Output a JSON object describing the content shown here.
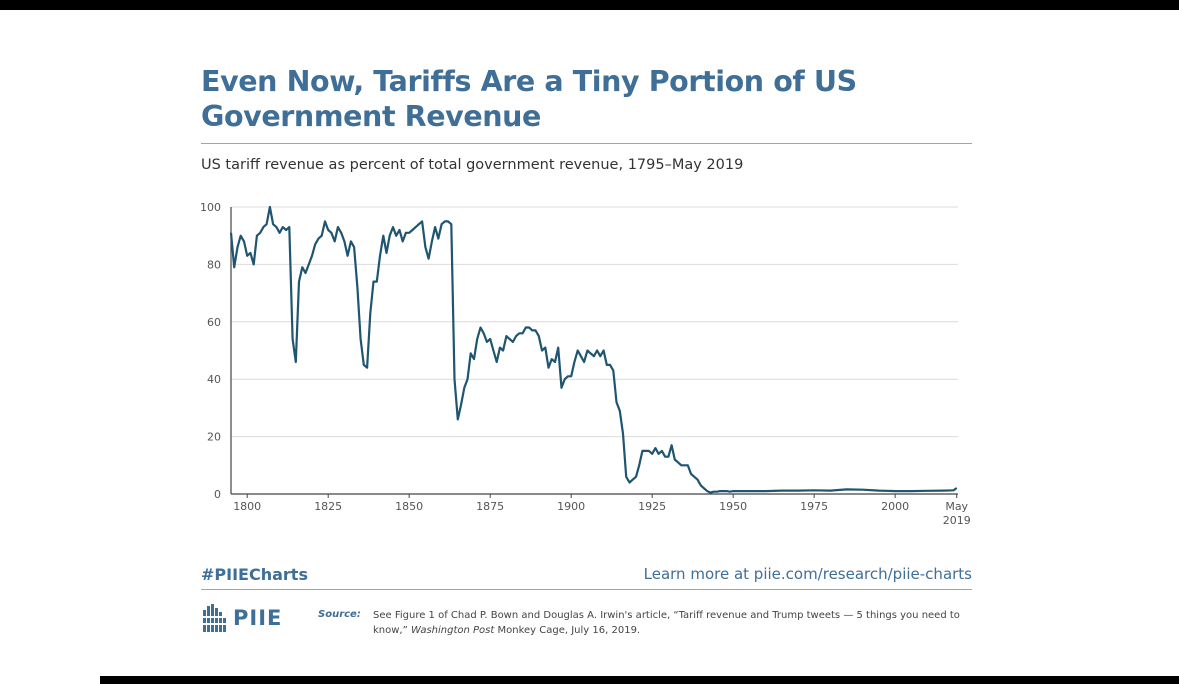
{
  "header": {
    "title": "Even Now, Tariffs Are a Tiny Portion of US Government Revenue",
    "subtitle": "US tariff revenue as percent of total government revenue, 1795–May 2019"
  },
  "footer": {
    "hashtag": "#PIIECharts",
    "learn_more": "Learn more at piie.com/research/piie-charts",
    "logo_text": "PIIE",
    "source_label": "Source:",
    "source_text_1": "See Figure 1 of Chad P. Bown and Douglas A. Irwin's article, “Tariff revenue and Trump tweets — 5 things you need to know,”",
    "source_italic": "Washington Post",
    "source_text_2": "Monkey Cage, July 16, 2019."
  },
  "colors": {
    "line": "#1f5570",
    "title": "#3f6e97",
    "grid": "#dcdcdc"
  },
  "chart_data": {
    "type": "line",
    "title": "Even Now, Tariffs Are a Tiny Portion of US Government Revenue",
    "subtitle": "US tariff revenue as percent of total government revenue, 1795–May 2019",
    "xlabel": "",
    "ylabel": "",
    "xlim": [
      1795,
      2019.4
    ],
    "ylim": [
      0,
      100
    ],
    "grid": true,
    "y_ticks": [
      0,
      20,
      40,
      60,
      80,
      100
    ],
    "x_ticks": [
      {
        "value": 1800,
        "label": "1800"
      },
      {
        "value": 1825,
        "label": "1825"
      },
      {
        "value": 1850,
        "label": "1850"
      },
      {
        "value": 1875,
        "label": "1875"
      },
      {
        "value": 1900,
        "label": "1900"
      },
      {
        "value": 1925,
        "label": "1925"
      },
      {
        "value": 1950,
        "label": "1950"
      },
      {
        "value": 1975,
        "label": "1975"
      },
      {
        "value": 2000,
        "label": "2000"
      },
      {
        "value": 2019,
        "label": "May",
        "label2": "2019"
      }
    ],
    "series": [
      {
        "values": [
          [
            1795,
            91
          ],
          [
            1796,
            79
          ],
          [
            1797,
            86
          ],
          [
            1798,
            90
          ],
          [
            1799,
            88
          ],
          [
            1800,
            83
          ],
          [
            1801,
            84
          ],
          [
            1802,
            80
          ],
          [
            1803,
            90
          ],
          [
            1804,
            91
          ],
          [
            1805,
            93
          ],
          [
            1806,
            94
          ],
          [
            1807,
            100
          ],
          [
            1808,
            94
          ],
          [
            1809,
            93
          ],
          [
            1810,
            91
          ],
          [
            1811,
            93
          ],
          [
            1812,
            92
          ],
          [
            1813,
            93
          ],
          [
            1814,
            54
          ],
          [
            1815,
            46
          ],
          [
            1816,
            74
          ],
          [
            1817,
            79
          ],
          [
            1818,
            77
          ],
          [
            1819,
            80
          ],
          [
            1820,
            83
          ],
          [
            1821,
            87
          ],
          [
            1822,
            89
          ],
          [
            1823,
            90
          ],
          [
            1824,
            95
          ],
          [
            1825,
            92
          ],
          [
            1826,
            91
          ],
          [
            1827,
            88
          ],
          [
            1828,
            93
          ],
          [
            1829,
            91
          ],
          [
            1830,
            88
          ],
          [
            1831,
            83
          ],
          [
            1832,
            88
          ],
          [
            1833,
            86
          ],
          [
            1834,
            72
          ],
          [
            1835,
            54
          ],
          [
            1836,
            45
          ],
          [
            1837,
            44
          ],
          [
            1838,
            63
          ],
          [
            1839,
            74
          ],
          [
            1840,
            74
          ],
          [
            1841,
            83
          ],
          [
            1842,
            90
          ],
          [
            1843,
            84
          ],
          [
            1844,
            90
          ],
          [
            1845,
            93
          ],
          [
            1846,
            90
          ],
          [
            1847,
            92
          ],
          [
            1848,
            88
          ],
          [
            1849,
            91
          ],
          [
            1850,
            91
          ],
          [
            1851,
            92
          ],
          [
            1852,
            93
          ],
          [
            1853,
            94
          ],
          [
            1854,
            95
          ],
          [
            1855,
            86
          ],
          [
            1856,
            82
          ],
          [
            1857,
            88
          ],
          [
            1858,
            93
          ],
          [
            1859,
            89
          ],
          [
            1860,
            94
          ],
          [
            1861,
            95
          ],
          [
            1862,
            95
          ],
          [
            1863,
            94
          ],
          [
            1864,
            40
          ],
          [
            1865,
            26
          ],
          [
            1866,
            31
          ],
          [
            1867,
            37
          ],
          [
            1868,
            40
          ],
          [
            1869,
            49
          ],
          [
            1870,
            47
          ],
          [
            1871,
            54
          ],
          [
            1872,
            58
          ],
          [
            1873,
            56
          ],
          [
            1874,
            53
          ],
          [
            1875,
            54
          ],
          [
            1876,
            50
          ],
          [
            1877,
            46
          ],
          [
            1878,
            51
          ],
          [
            1879,
            50
          ],
          [
            1880,
            55
          ],
          [
            1881,
            54
          ],
          [
            1882,
            53
          ],
          [
            1883,
            55
          ],
          [
            1884,
            56
          ],
          [
            1885,
            56
          ],
          [
            1886,
            58
          ],
          [
            1887,
            58
          ],
          [
            1888,
            57
          ],
          [
            1889,
            57
          ],
          [
            1890,
            55
          ],
          [
            1891,
            50
          ],
          [
            1892,
            51
          ],
          [
            1893,
            44
          ],
          [
            1894,
            47
          ],
          [
            1895,
            46
          ],
          [
            1896,
            51
          ],
          [
            1897,
            37
          ],
          [
            1898,
            40
          ],
          [
            1899,
            41
          ],
          [
            1900,
            41
          ],
          [
            1901,
            46
          ],
          [
            1902,
            50
          ],
          [
            1903,
            48
          ],
          [
            1904,
            46
          ],
          [
            1905,
            50
          ],
          [
            1906,
            49
          ],
          [
            1907,
            48
          ],
          [
            1908,
            50
          ],
          [
            1909,
            48
          ],
          [
            1910,
            50
          ],
          [
            1911,
            45
          ],
          [
            1912,
            45
          ],
          [
            1913,
            43
          ],
          [
            1914,
            32
          ],
          [
            1915,
            29
          ],
          [
            1916,
            21
          ],
          [
            1917,
            6
          ],
          [
            1918,
            4
          ],
          [
            1919,
            5
          ],
          [
            1920,
            6
          ],
          [
            1921,
            10
          ],
          [
            1922,
            15
          ],
          [
            1923,
            15
          ],
          [
            1924,
            15
          ],
          [
            1925,
            14
          ],
          [
            1926,
            16
          ],
          [
            1927,
            14
          ],
          [
            1928,
            15
          ],
          [
            1929,
            13
          ],
          [
            1930,
            13
          ],
          [
            1931,
            17
          ],
          [
            1932,
            12
          ],
          [
            1933,
            11
          ],
          [
            1934,
            10
          ],
          [
            1935,
            10
          ],
          [
            1936,
            10
          ],
          [
            1937,
            7
          ],
          [
            1938,
            6
          ],
          [
            1939,
            5
          ],
          [
            1940,
            3
          ],
          [
            1941,
            2
          ],
          [
            1942,
            1
          ],
          [
            1943,
            0.5
          ],
          [
            1944,
            0.8
          ],
          [
            1945,
            0.8
          ],
          [
            1946,
            1
          ],
          [
            1947,
            1
          ],
          [
            1948,
            1
          ],
          [
            1949,
            0.8
          ],
          [
            1950,
            1
          ],
          [
            1955,
            1
          ],
          [
            1960,
            1
          ],
          [
            1965,
            1.2
          ],
          [
            1970,
            1.2
          ],
          [
            1975,
            1.3
          ],
          [
            1980,
            1.2
          ],
          [
            1985,
            1.6
          ],
          [
            1990,
            1.5
          ],
          [
            1995,
            1.2
          ],
          [
            2000,
            1
          ],
          [
            2005,
            1
          ],
          [
            2010,
            1.1
          ],
          [
            2015,
            1.2
          ],
          [
            2018,
            1.3
          ],
          [
            2019,
            2.1
          ]
        ]
      }
    ]
  }
}
